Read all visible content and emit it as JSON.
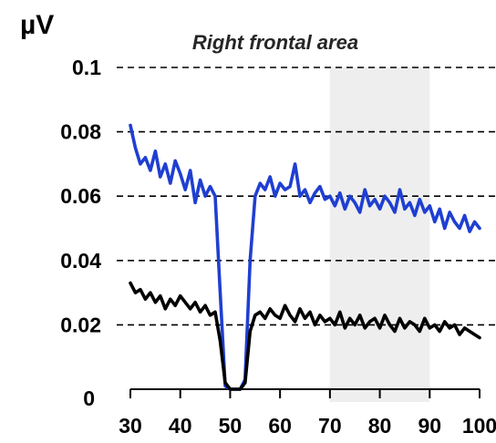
{
  "chart_data": {
    "type": "line",
    "title": "Right frontal area",
    "ylabel": "µV",
    "xlabel": "",
    "xlim": [
      30,
      100
    ],
    "ylim": [
      0,
      0.1
    ],
    "x_ticks": [
      30,
      40,
      50,
      60,
      70,
      80,
      90,
      100
    ],
    "y_ticks": [
      0.02,
      0.04,
      0.06,
      0.08,
      0.1
    ],
    "y_tick_labels": [
      "0.02",
      "0.04",
      "0.06",
      "0.08",
      "0.1"
    ],
    "y_zero_label": "0",
    "grid": "horizontal dashed",
    "highlight_band": {
      "x_start": 70,
      "x_end": 90,
      "color": "#eeeeee"
    },
    "series": [
      {
        "color": "#1f3fd1",
        "x": [
          30,
          31,
          32,
          33,
          34,
          35,
          36,
          37,
          38,
          39,
          40,
          41,
          42,
          43,
          44,
          45,
          46,
          47,
          48,
          49,
          50,
          51,
          52,
          53,
          54,
          55,
          56,
          57,
          58,
          59,
          60,
          61,
          62,
          63,
          64,
          65,
          66,
          67,
          68,
          69,
          70,
          71,
          72,
          73,
          74,
          75,
          76,
          77,
          78,
          79,
          80,
          81,
          82,
          83,
          84,
          85,
          86,
          87,
          88,
          89,
          90,
          91,
          92,
          93,
          94,
          95,
          96,
          97,
          98,
          99,
          100
        ],
        "y": [
          0.082,
          0.075,
          0.07,
          0.072,
          0.068,
          0.074,
          0.066,
          0.07,
          0.064,
          0.071,
          0.067,
          0.062,
          0.068,
          0.058,
          0.065,
          0.06,
          0.063,
          0.06,
          0.03,
          0.001,
          0.0,
          0.0,
          0.0,
          0.003,
          0.04,
          0.06,
          0.064,
          0.062,
          0.066,
          0.06,
          0.064,
          0.062,
          0.063,
          0.07,
          0.06,
          0.062,
          0.058,
          0.061,
          0.063,
          0.059,
          0.06,
          0.057,
          0.061,
          0.056,
          0.06,
          0.058,
          0.055,
          0.062,
          0.057,
          0.059,
          0.056,
          0.06,
          0.058,
          0.055,
          0.062,
          0.056,
          0.058,
          0.054,
          0.059,
          0.055,
          0.057,
          0.052,
          0.056,
          0.05,
          0.055,
          0.052,
          0.05,
          0.054,
          0.049,
          0.052,
          0.05
        ]
      },
      {
        "color": "#000000",
        "x": [
          30,
          31,
          32,
          33,
          34,
          35,
          36,
          37,
          38,
          39,
          40,
          41,
          42,
          43,
          44,
          45,
          46,
          47,
          48,
          49,
          50,
          51,
          52,
          53,
          54,
          55,
          56,
          57,
          58,
          59,
          60,
          61,
          62,
          63,
          64,
          65,
          66,
          67,
          68,
          69,
          70,
          71,
          72,
          73,
          74,
          75,
          76,
          77,
          78,
          79,
          80,
          81,
          82,
          83,
          84,
          85,
          86,
          87,
          88,
          89,
          90,
          91,
          92,
          93,
          94,
          95,
          96,
          97,
          98,
          99,
          100
        ],
        "y": [
          0.033,
          0.03,
          0.031,
          0.028,
          0.03,
          0.027,
          0.029,
          0.025,
          0.028,
          0.026,
          0.029,
          0.027,
          0.025,
          0.027,
          0.024,
          0.026,
          0.023,
          0.024,
          0.015,
          0.002,
          0.0,
          0.0,
          0.0,
          0.002,
          0.018,
          0.023,
          0.024,
          0.022,
          0.025,
          0.023,
          0.022,
          0.026,
          0.023,
          0.021,
          0.025,
          0.022,
          0.024,
          0.02,
          0.023,
          0.021,
          0.022,
          0.02,
          0.024,
          0.019,
          0.022,
          0.02,
          0.023,
          0.019,
          0.021,
          0.022,
          0.019,
          0.023,
          0.02,
          0.018,
          0.022,
          0.019,
          0.021,
          0.02,
          0.018,
          0.022,
          0.019,
          0.02,
          0.018,
          0.021,
          0.019,
          0.02,
          0.017,
          0.019,
          0.018,
          0.017,
          0.016
        ]
      }
    ]
  }
}
